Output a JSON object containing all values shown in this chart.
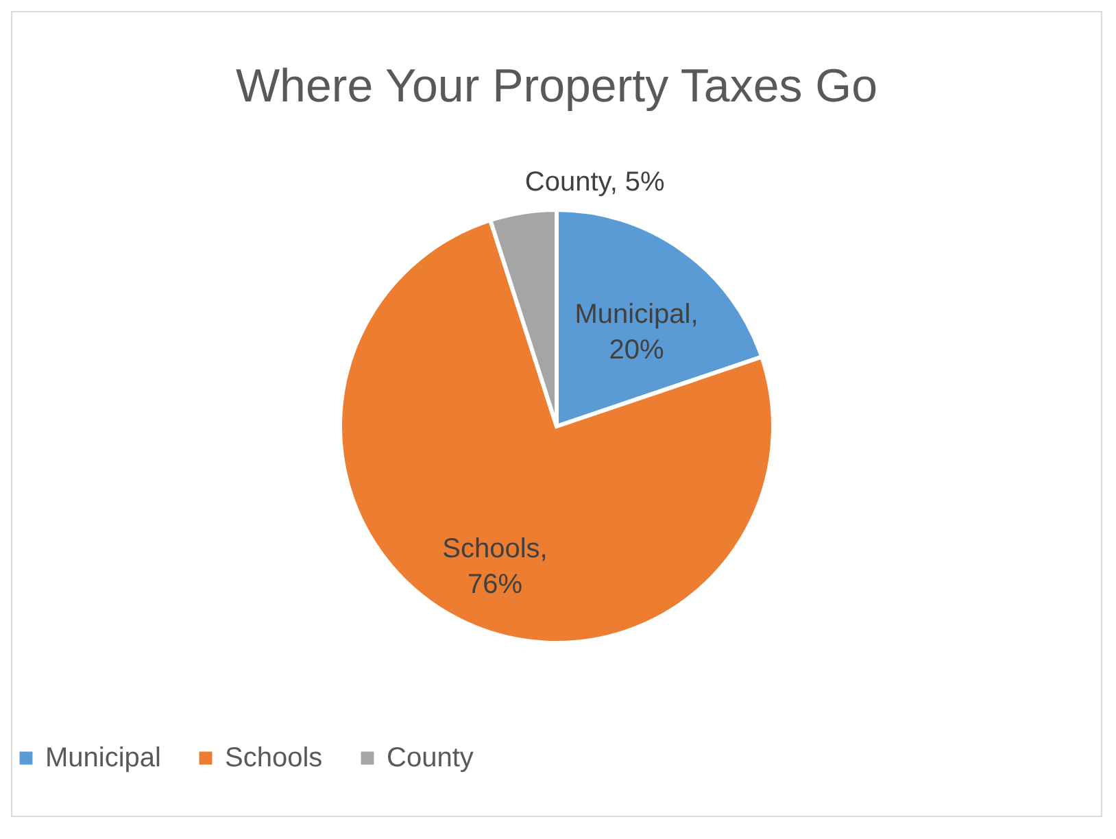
{
  "chart_data": {
    "type": "pie",
    "title": "Where Your Property Taxes Go",
    "categories": [
      "Municipal",
      "Schools",
      "County"
    ],
    "values": [
      20,
      76,
      5
    ],
    "colors": [
      "#5b9bd5",
      "#ed7d31",
      "#a5a5a5"
    ],
    "value_labels": [
      "Municipal, 20%",
      "Schools, 76%",
      "County, 5%"
    ],
    "legend": "bottom"
  }
}
